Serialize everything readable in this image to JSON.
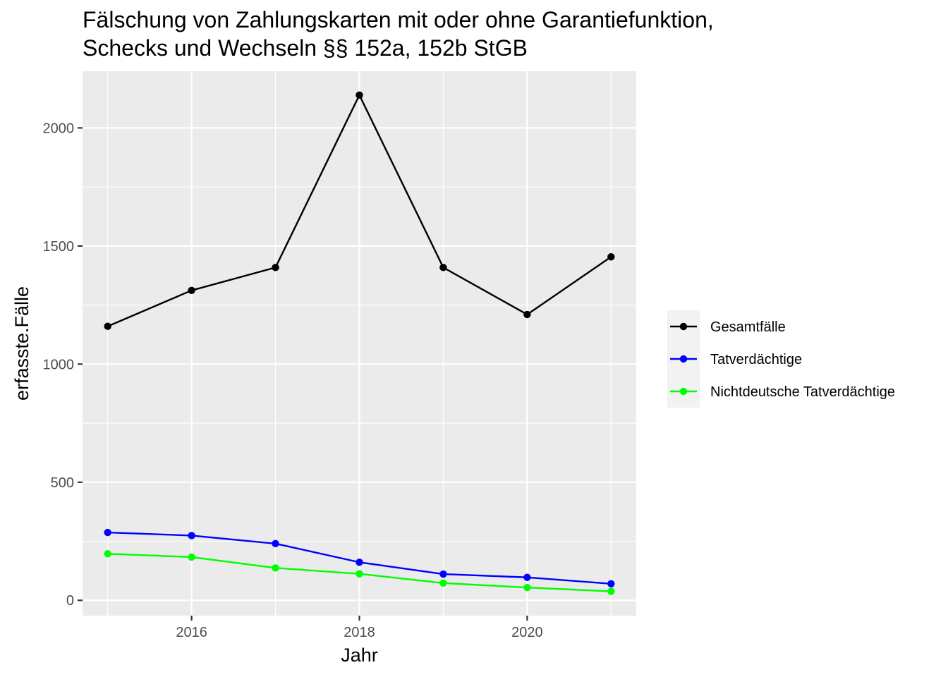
{
  "chart_data": {
    "type": "line",
    "title_lines": [
      "Fälschung von Zahlungskarten mit oder ohne Garantiefunktion,",
      "Schecks und Wechseln §§ 152a, 152b StGB"
    ],
    "xlabel": "Jahr",
    "ylabel": "erfasste.Fälle",
    "x": [
      2015,
      2016,
      2017,
      2018,
      2019,
      2020,
      2021
    ],
    "xticks": [
      2016,
      2018,
      2020
    ],
    "yticks": [
      0,
      500,
      1000,
      1500,
      2000
    ],
    "xlim": [
      2014.7,
      2021.3
    ],
    "ylim": [
      -65,
      2240
    ],
    "grid": true,
    "legend_position": "right",
    "series": [
      {
        "name": "Gesamtfälle",
        "color": "#000000",
        "values": [
          1160,
          1312,
          1409,
          2139,
          1409,
          1210,
          1454
        ]
      },
      {
        "name": "Tatverdächtige",
        "color": "#0000ff",
        "values": [
          287,
          274,
          240,
          161,
          111,
          97,
          70
        ]
      },
      {
        "name": "Nichtdeutsche Tatverdächtige",
        "color": "#00ff00",
        "values": [
          197,
          183,
          137,
          112,
          73,
          54,
          38
        ]
      }
    ]
  }
}
